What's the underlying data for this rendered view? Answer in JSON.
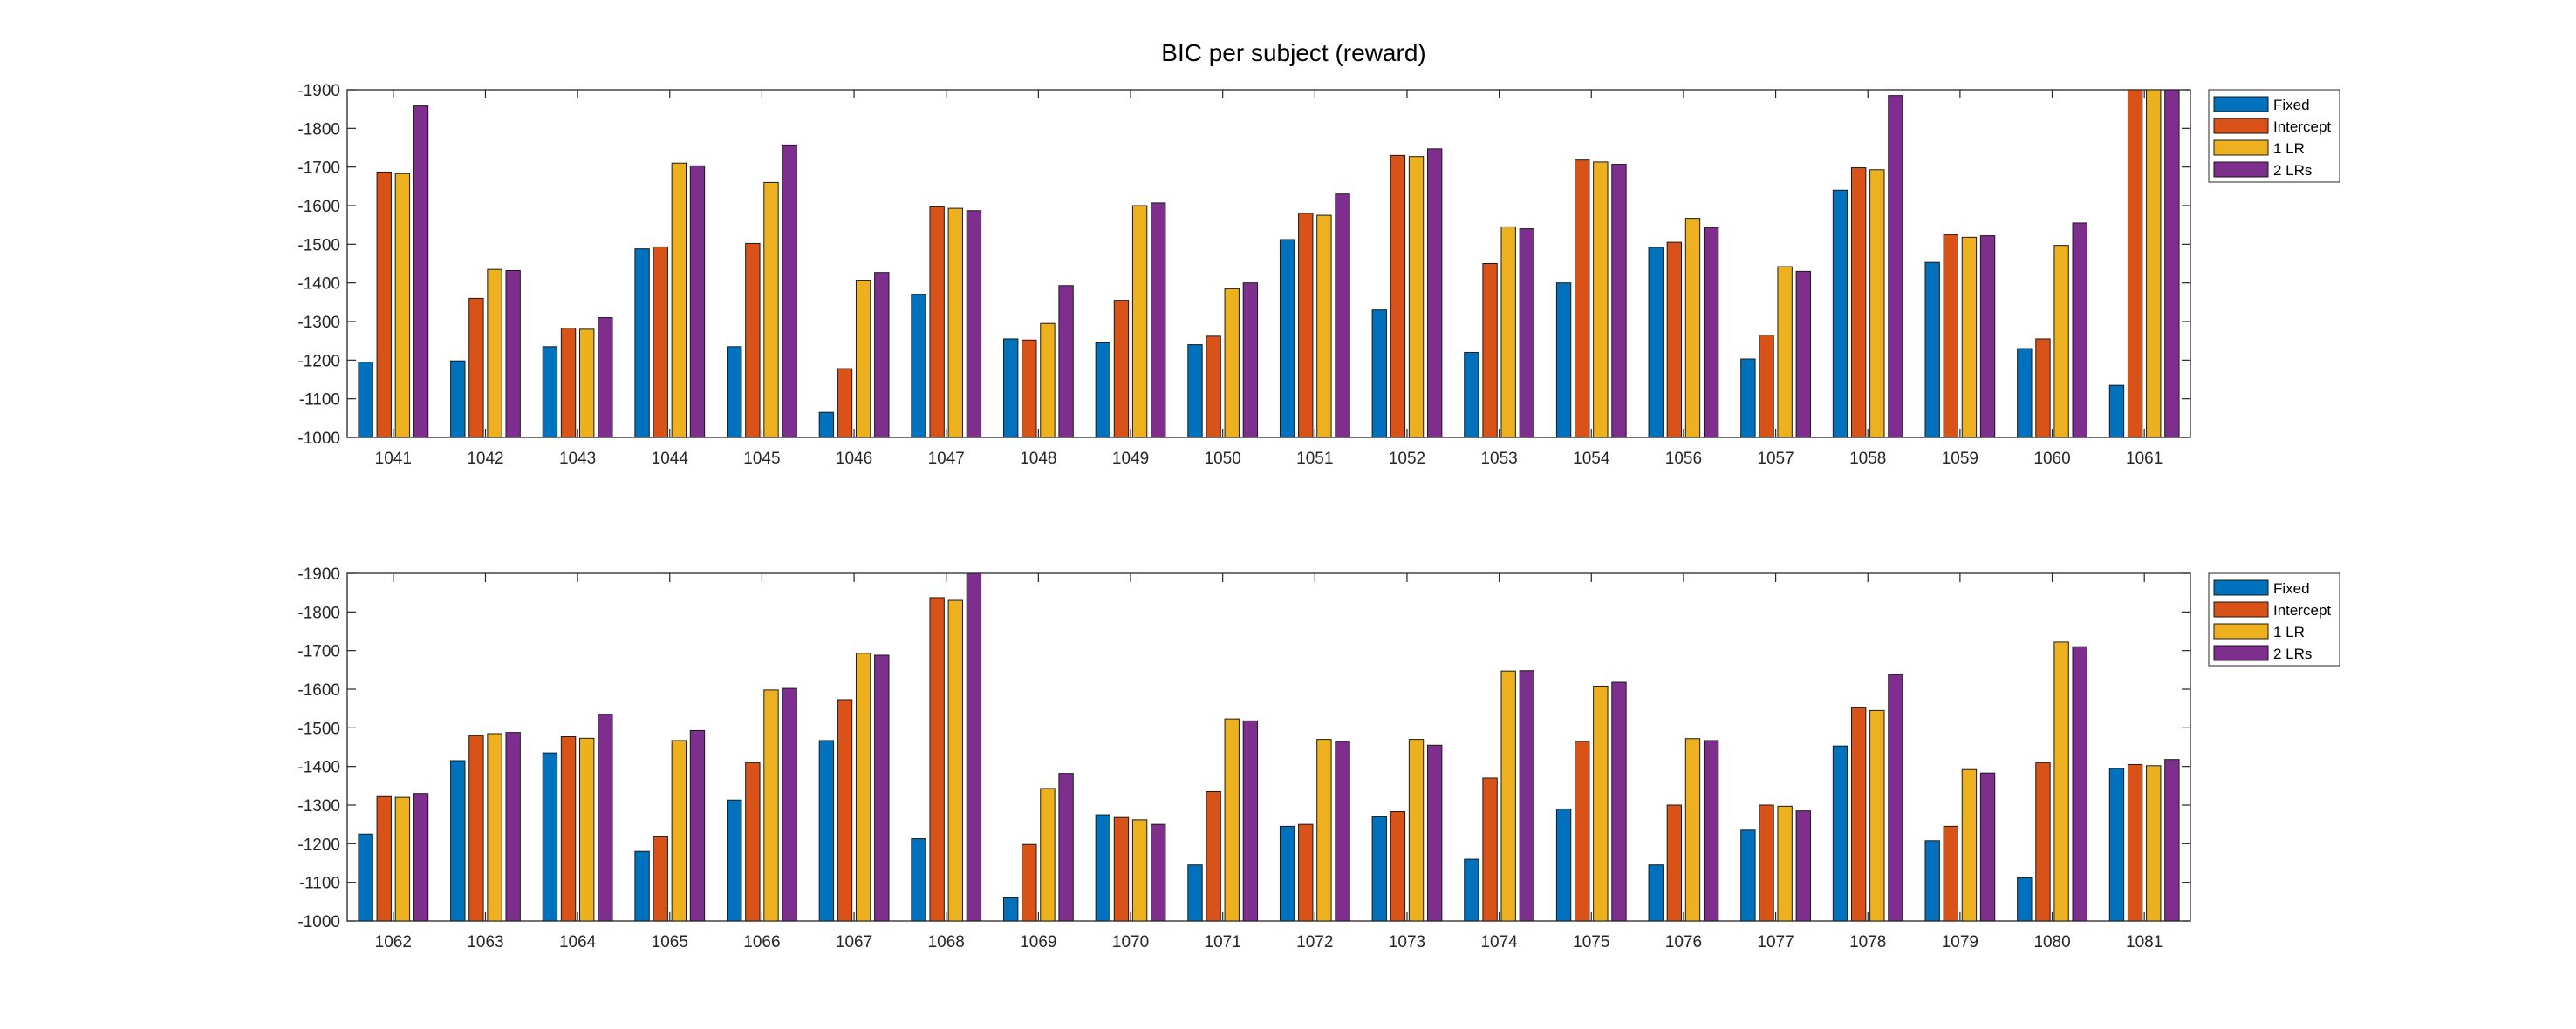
{
  "title": "BIC per subject (reward)",
  "colors": [
    "#0072bd",
    "#d95319",
    "#edb120",
    "#7e2f8e"
  ],
  "chart_data": [
    {
      "type": "bar",
      "title": "BIC per subject (reward)",
      "xlabel": "",
      "ylabel": "",
      "ylim": [
        -1900,
        -1000
      ],
      "y_axis_reversed": true,
      "yticks": [
        -1900,
        -1800,
        -1700,
        -1600,
        -1500,
        -1400,
        -1300,
        -1200,
        -1100,
        -1000
      ],
      "legend_position": "outside-top-right",
      "categories": [
        "1041",
        "1042",
        "1043",
        "1044",
        "1045",
        "1046",
        "1047",
        "1048",
        "1049",
        "1050",
        "1051",
        "1052",
        "1053",
        "1054",
        "1056",
        "1057",
        "1058",
        "1059",
        "1060",
        "1061"
      ],
      "series": [
        {
          "name": "Fixed",
          "values": [
            -1195,
            -1198,
            -1235,
            -1488,
            -1235,
            -1065,
            -1370,
            -1255,
            -1245,
            -1240,
            -1512,
            -1330,
            -1220,
            -1400,
            -1492,
            -1203,
            -1640,
            -1453,
            -1230,
            -1135
          ]
        },
        {
          "name": "Intercept",
          "values": [
            -1687,
            -1360,
            -1283,
            -1493,
            -1502,
            -1178,
            -1597,
            -1252,
            -1355,
            -1262,
            -1580,
            -1730,
            -1450,
            -1718,
            -1505,
            -1265,
            -1698,
            -1525,
            -1255,
            -1900
          ]
        },
        {
          "name": "1 LR",
          "values": [
            -1683,
            -1435,
            -1280,
            -1710,
            -1660,
            -1407,
            -1593,
            -1295,
            -1600,
            -1385,
            -1575,
            -1727,
            -1545,
            -1713,
            -1567,
            -1442,
            -1693,
            -1518,
            -1497,
            -1900
          ]
        },
        {
          "name": "2 LRs",
          "values": [
            -1858,
            -1432,
            -1310,
            -1703,
            -1757,
            -1427,
            -1587,
            -1393,
            -1607,
            -1400,
            -1630,
            -1747,
            -1540,
            -1707,
            -1543,
            -1430,
            -1885,
            -1522,
            -1555,
            -1900
          ]
        }
      ]
    },
    {
      "type": "bar",
      "title": "",
      "xlabel": "",
      "ylabel": "",
      "ylim": [
        -1900,
        -1000
      ],
      "y_axis_reversed": true,
      "yticks": [
        -1900,
        -1800,
        -1700,
        -1600,
        -1500,
        -1400,
        -1300,
        -1200,
        -1100,
        -1000
      ],
      "legend_position": "outside-top-right",
      "categories": [
        "1062",
        "1063",
        "1064",
        "1065",
        "1066",
        "1067",
        "1068",
        "1069",
        "1070",
        "1071",
        "1072",
        "1073",
        "1074",
        "1075",
        "1076",
        "1077",
        "1078",
        "1079",
        "1080",
        "1081"
      ],
      "series": [
        {
          "name": "Fixed",
          "values": [
            -1225,
            -1415,
            -1435,
            -1180,
            -1313,
            -1467,
            -1213,
            -1060,
            -1275,
            -1145,
            -1245,
            -1270,
            -1160,
            -1290,
            -1145,
            -1235,
            -1453,
            -1208,
            -1112,
            -1395
          ]
        },
        {
          "name": "Intercept",
          "values": [
            -1322,
            -1480,
            -1477,
            -1218,
            -1410,
            -1573,
            -1837,
            -1198,
            -1268,
            -1335,
            -1250,
            -1283,
            -1370,
            -1465,
            -1300,
            -1300,
            -1552,
            -1245,
            -1410,
            -1405
          ]
        },
        {
          "name": "1 LR",
          "values": [
            -1320,
            -1485,
            -1473,
            -1467,
            -1598,
            -1693,
            -1830,
            -1343,
            -1262,
            -1523,
            -1470,
            -1470,
            -1647,
            -1608,
            -1472,
            -1297,
            -1545,
            -1392,
            -1722,
            -1402
          ]
        },
        {
          "name": "2 LRs",
          "values": [
            -1330,
            -1488,
            -1535,
            -1493,
            -1602,
            -1688,
            -1900,
            -1382,
            -1250,
            -1518,
            -1465,
            -1455,
            -1648,
            -1618,
            -1467,
            -1285,
            -1638,
            -1383,
            -1710,
            -1418
          ]
        }
      ]
    }
  ]
}
